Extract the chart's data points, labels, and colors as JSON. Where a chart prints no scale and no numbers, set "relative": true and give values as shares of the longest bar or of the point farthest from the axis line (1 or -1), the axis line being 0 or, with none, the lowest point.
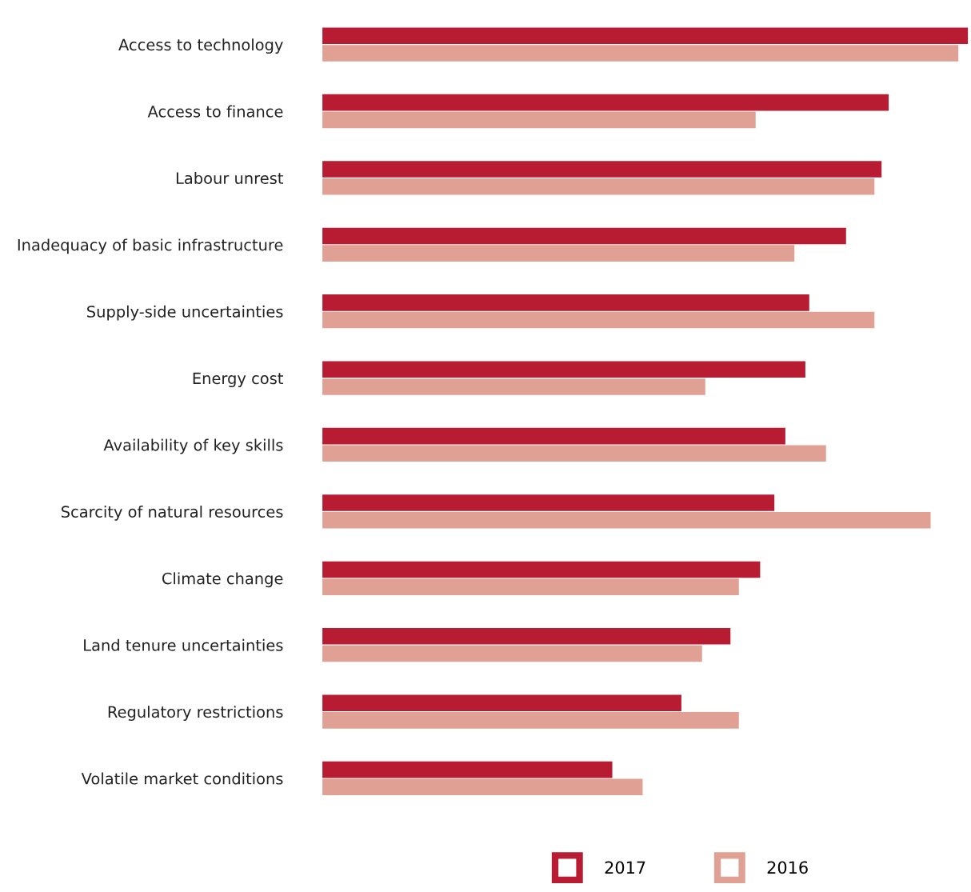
{
  "chart_data": {
    "type": "bar",
    "orientation": "horizontal",
    "relative": true,
    "legend": "bottom",
    "grid": false,
    "categories": [
      "Access to technology",
      "Access to finance",
      "Labour unrest",
      "Inadequacy of basic infrastructure",
      "Supply-side uncertainties",
      "Energy cost",
      "Availability of key skills",
      "Scarcity of natural resources",
      "Climate change",
      "Land tenure uncertainties",
      "Regulatory restrictions",
      "Volatile market conditions"
    ],
    "series": [
      {
        "name": "2017",
        "color": "#b71c32",
        "values": [
          1.0,
          0.877,
          0.866,
          0.811,
          0.754,
          0.748,
          0.717,
          0.7,
          0.678,
          0.632,
          0.556,
          0.449
        ]
      },
      {
        "name": "2016",
        "color": "#e0a093",
        "values": [
          0.985,
          0.671,
          0.855,
          0.731,
          0.855,
          0.593,
          0.78,
          0.942,
          0.645,
          0.588,
          0.645,
          0.496
        ]
      }
    ]
  }
}
